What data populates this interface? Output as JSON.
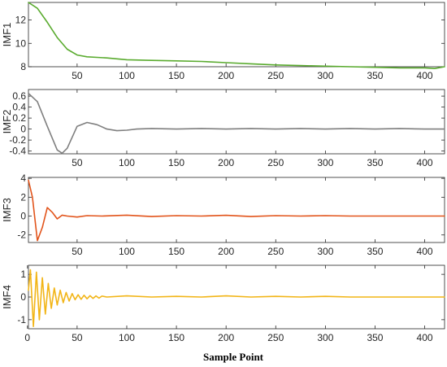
{
  "chart_data": [
    {
      "type": "line",
      "ylabel": "IMF1",
      "xlim": [
        1,
        420
      ],
      "ylim": [
        8,
        13.5
      ],
      "yticks": [
        8,
        10,
        12
      ],
      "xticks": [
        50,
        100,
        150,
        200,
        250,
        300,
        350,
        400
      ],
      "grid": false,
      "color": "#5aab2f",
      "series": [
        {
          "x": [
            1,
            10,
            20,
            30,
            40,
            50,
            60,
            70,
            80,
            100,
            120,
            150,
            175,
            200,
            225,
            250,
            275,
            300,
            325,
            350,
            375,
            400,
            410,
            420
          ],
          "y": [
            13.5,
            13.0,
            11.8,
            10.5,
            9.5,
            9.0,
            8.85,
            8.8,
            8.75,
            8.6,
            8.55,
            8.5,
            8.45,
            8.35,
            8.25,
            8.15,
            8.1,
            8.05,
            8.0,
            7.95,
            7.9,
            7.9,
            7.85,
            8.0
          ]
        }
      ]
    },
    {
      "type": "line",
      "ylabel": "IMF2",
      "xlim": [
        1,
        420
      ],
      "ylim": [
        -0.45,
        0.72
      ],
      "yticks": [
        -0.4,
        -0.2,
        0,
        0.2,
        0.4,
        0.6
      ],
      "xticks": [
        50,
        100,
        150,
        200,
        250,
        300,
        350,
        400
      ],
      "grid": false,
      "color": "#7f7f7f",
      "series": [
        {
          "x": [
            1,
            10,
            20,
            30,
            35,
            40,
            50,
            60,
            70,
            80,
            90,
            100,
            110,
            125,
            150,
            175,
            200,
            225,
            250,
            275,
            300,
            325,
            350,
            375,
            400,
            420
          ],
          "y": [
            0.65,
            0.5,
            0.05,
            -0.38,
            -0.44,
            -0.35,
            0.05,
            0.12,
            0.08,
            0.0,
            -0.03,
            -0.02,
            0.0,
            0.01,
            0.0,
            0.01,
            0.0,
            0.01,
            0.0,
            0.01,
            0.0,
            0.01,
            0.0,
            0.01,
            0.0,
            0.0
          ]
        }
      ]
    },
    {
      "type": "line",
      "ylabel": "IMF3",
      "xlim": [
        1,
        420
      ],
      "ylim": [
        -2.8,
        4.1
      ],
      "yticks": [
        -2,
        0,
        2,
        4
      ],
      "xticks": [
        50,
        100,
        150,
        200,
        250,
        300,
        350,
        400
      ],
      "grid": false,
      "color": "#e2541b",
      "series": [
        {
          "x": [
            1,
            5,
            10,
            15,
            20,
            25,
            30,
            35,
            40,
            50,
            60,
            75,
            100,
            125,
            150,
            175,
            200,
            225,
            250,
            275,
            300,
            325,
            350,
            375,
            400,
            420
          ],
          "y": [
            3.8,
            2.0,
            -2.6,
            -1.2,
            0.9,
            0.4,
            -0.3,
            0.1,
            0.0,
            -0.1,
            0.05,
            0.0,
            0.1,
            -0.05,
            0.05,
            0.0,
            0.08,
            -0.05,
            0.05,
            0.0,
            0.05,
            0.0,
            0.0,
            0.0,
            0.0,
            0.0
          ]
        }
      ]
    },
    {
      "type": "line",
      "ylabel": "IMF4",
      "xlim": [
        1,
        420
      ],
      "ylim": [
        -1.4,
        1.4
      ],
      "yticks": [
        -1,
        0,
        1
      ],
      "xticks": [
        0,
        50,
        100,
        150,
        200,
        250,
        300,
        350,
        400
      ],
      "grid": false,
      "color": "#f2b517",
      "series": [
        {
          "x": [
            1,
            3,
            6,
            9,
            12,
            15,
            18,
            21,
            24,
            27,
            30,
            33,
            36,
            39,
            42,
            45,
            48,
            51,
            54,
            57,
            60,
            63,
            66,
            69,
            72,
            75,
            80,
            100,
            125,
            150,
            175,
            200,
            225,
            250,
            275,
            300,
            325,
            350,
            375,
            400,
            420
          ],
          "y": [
            0.3,
            1.2,
            -1.3,
            1.1,
            -1.0,
            0.85,
            -0.75,
            0.6,
            -0.5,
            0.4,
            -0.35,
            0.3,
            -0.25,
            0.2,
            -0.18,
            0.15,
            -0.12,
            0.1,
            -0.1,
            0.08,
            -0.08,
            0.06,
            -0.06,
            0.05,
            -0.05,
            0.04,
            0.0,
            0.05,
            0.0,
            0.03,
            0.0,
            0.05,
            0.0,
            0.03,
            0.0,
            0.03,
            0.0,
            0.0,
            0.0,
            0.0,
            0.0
          ]
        }
      ]
    }
  ],
  "xlabel": "Sample Point"
}
